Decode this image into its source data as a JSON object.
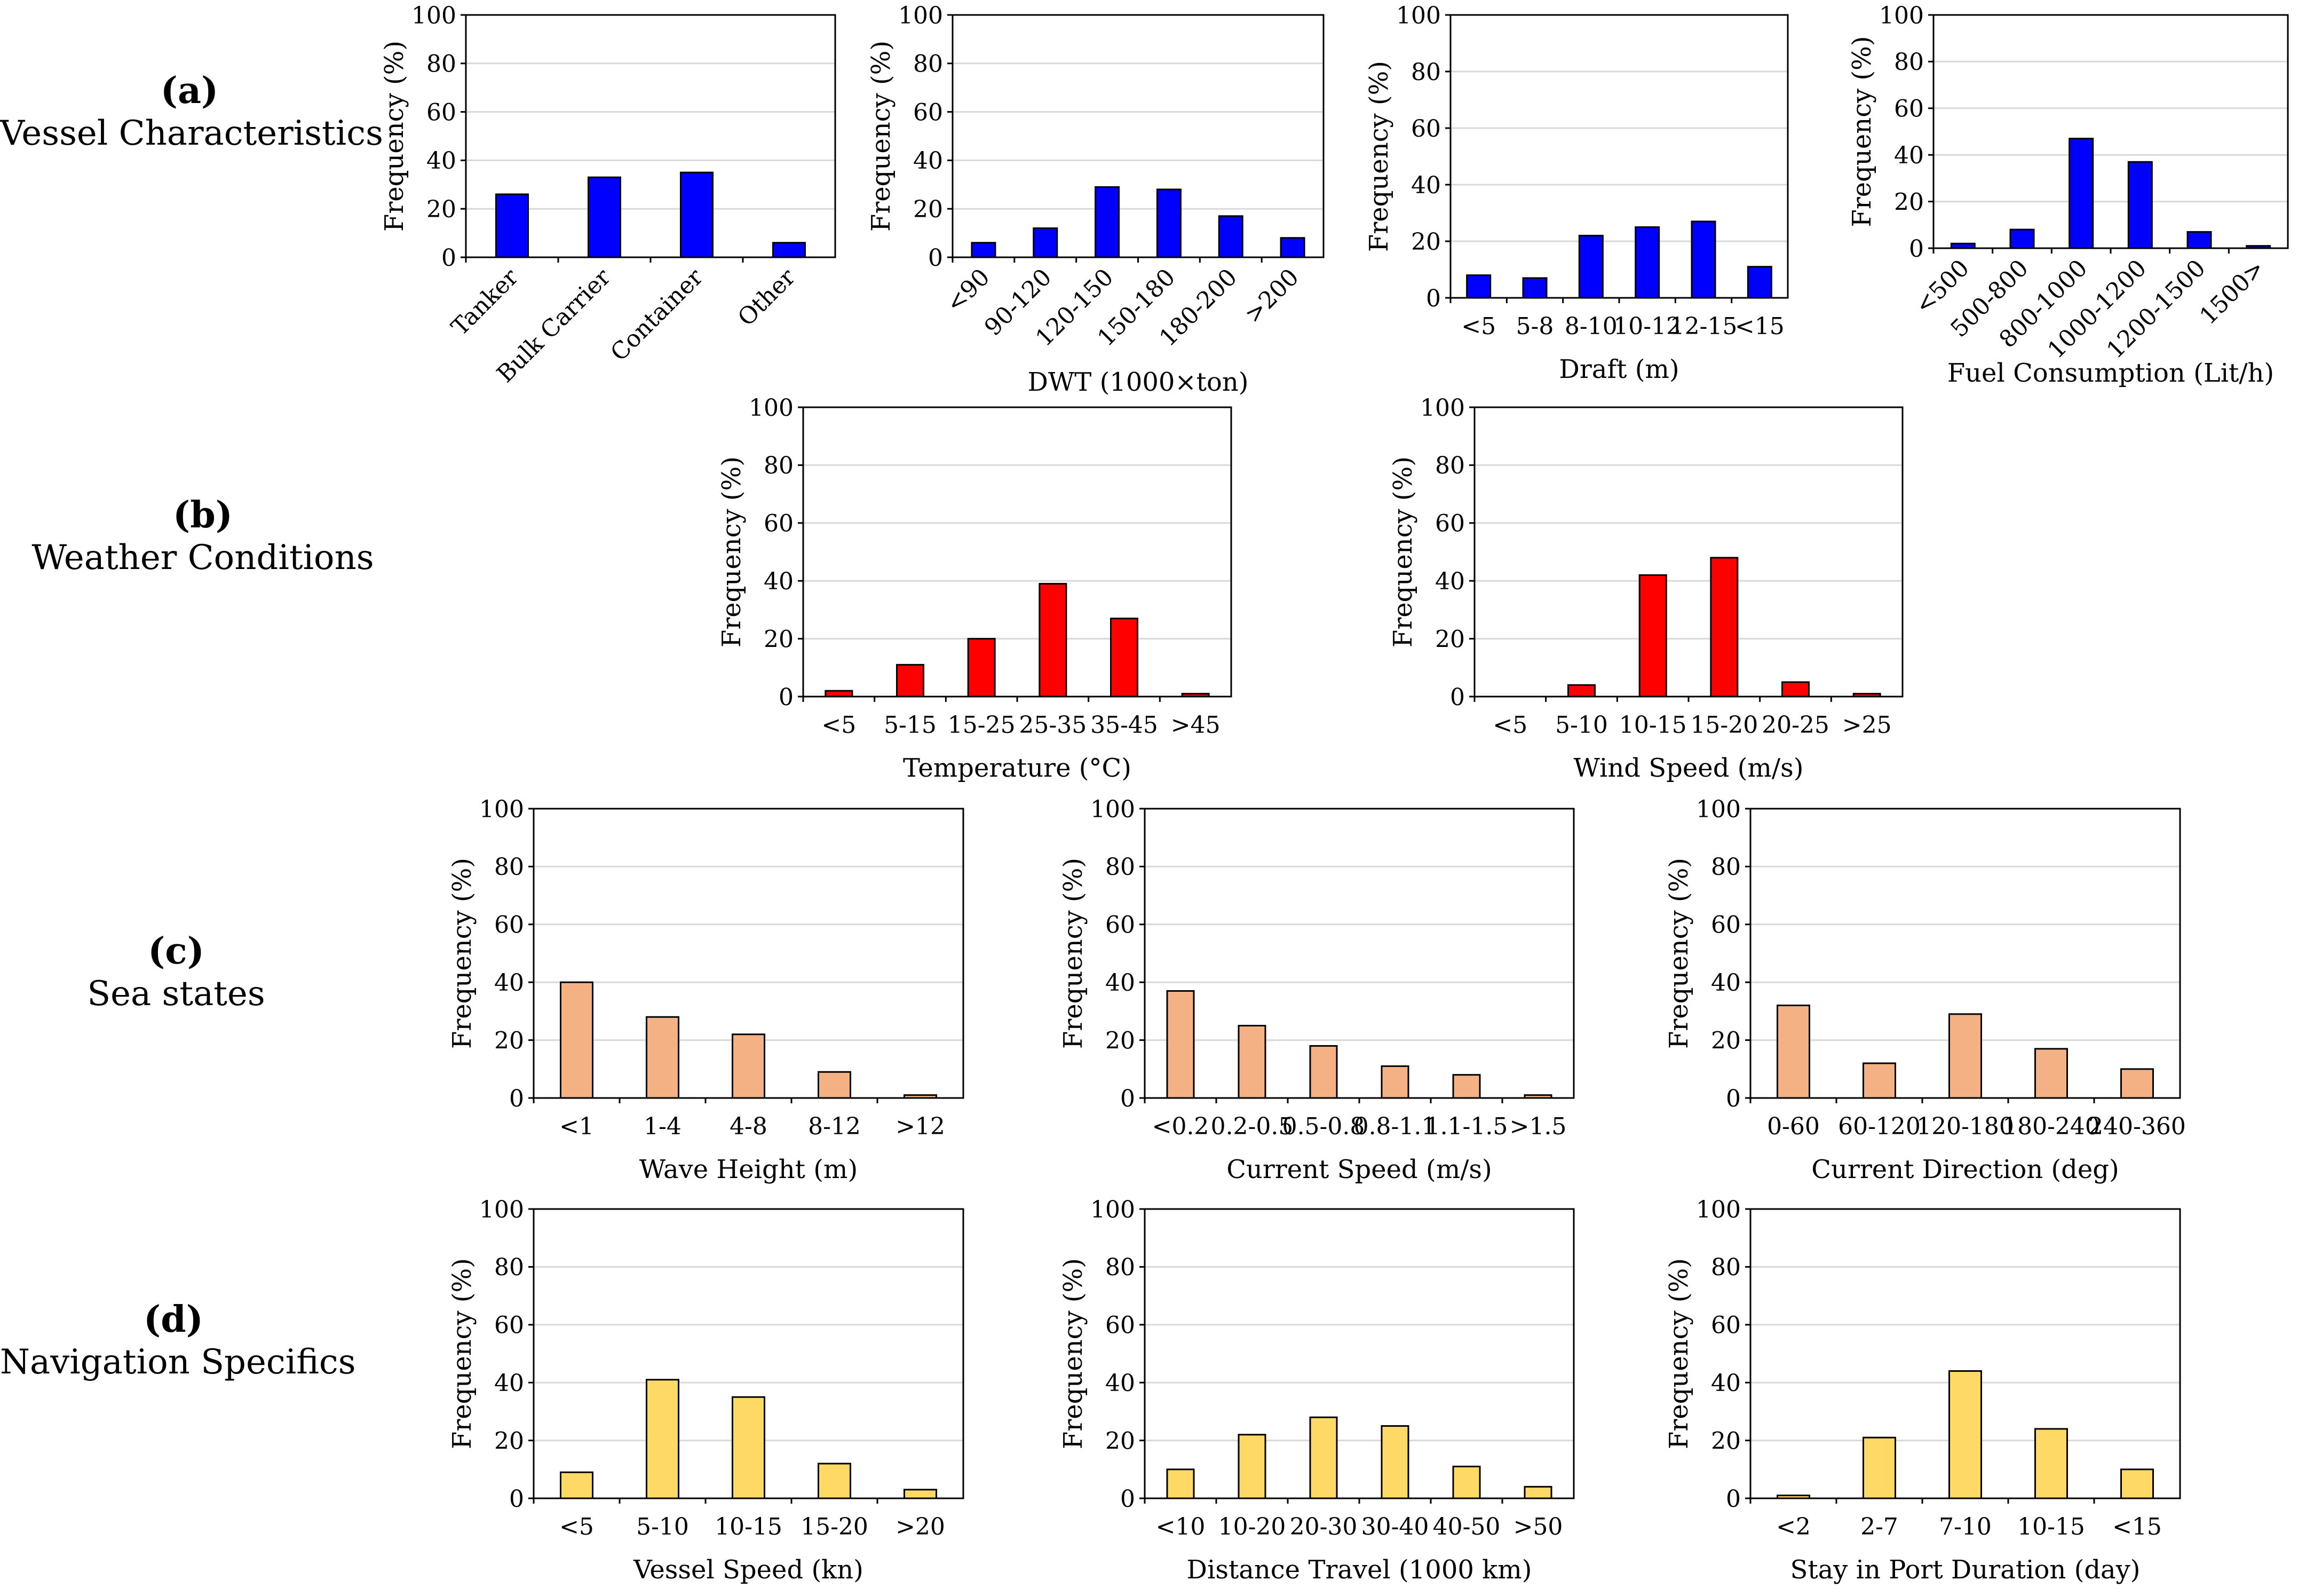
{
  "row_labels": [
    {
      "letter": "(a)",
      "name": "Vessel Characteristics"
    },
    {
      "letter": "(b)",
      "name": "Weather Conditions"
    },
    {
      "letter": "(c)",
      "name": "Sea states"
    },
    {
      "letter": "(d)",
      "name": "Navigation Specifics"
    }
  ],
  "colors": {
    "vessel": "#0000ff",
    "weather": "#ff0000",
    "sea": "#f4b183",
    "navigation": "#ffd966",
    "grid": "#d9d9d9",
    "axis": "#000000"
  },
  "chart_data": [
    {
      "id": "vessel-type",
      "type": "bar",
      "group": "vessel",
      "xlabel": "",
      "ylabel": "Frequency (%)",
      "ylim": [
        0,
        100
      ],
      "yticks": [
        0,
        20,
        40,
        60,
        80,
        100
      ],
      "grid": true,
      "rotate_ticks": true,
      "categories": [
        "Tanker",
        "Bulk Carrier",
        "Container",
        "Other"
      ],
      "values": [
        26,
        33,
        35,
        6
      ]
    },
    {
      "id": "dwt",
      "type": "bar",
      "group": "vessel",
      "xlabel": "DWT (1000×ton)",
      "ylabel": "Frequency (%)",
      "ylim": [
        0,
        100
      ],
      "yticks": [
        0,
        20,
        40,
        60,
        80,
        100
      ],
      "grid": true,
      "rotate_ticks": true,
      "categories": [
        "<90",
        "90-120",
        "120-150",
        "150-180",
        "180-200",
        ">200"
      ],
      "values": [
        6,
        12,
        29,
        28,
        17,
        8
      ]
    },
    {
      "id": "draft",
      "type": "bar",
      "group": "vessel",
      "xlabel": "Draft (m)",
      "ylabel": "Frequency (%)",
      "ylim": [
        0,
        100
      ],
      "yticks": [
        0,
        20,
        40,
        60,
        80,
        100
      ],
      "grid": true,
      "rotate_ticks": false,
      "categories": [
        "<5",
        "5-8",
        "8-10",
        "10-12",
        "12-15",
        "<15"
      ],
      "values": [
        8,
        7,
        22,
        25,
        27,
        11
      ]
    },
    {
      "id": "fuel",
      "type": "bar",
      "group": "vessel",
      "xlabel": "Fuel Consumption (Lit/h)",
      "ylabel": "Frequency (%)",
      "ylim": [
        0,
        100
      ],
      "yticks": [
        0,
        20,
        40,
        60,
        80,
        100
      ],
      "grid": true,
      "rotate_ticks": true,
      "categories": [
        "<500",
        "500-800",
        "800-1000",
        "1000-1200",
        "1200-1500",
        "1500>"
      ],
      "values": [
        2,
        8,
        47,
        37,
        7,
        1
      ]
    },
    {
      "id": "temperature",
      "type": "bar",
      "group": "weather",
      "xlabel": "Temperature (°C)",
      "ylabel": "Frequency (%)",
      "ylim": [
        0,
        100
      ],
      "yticks": [
        0,
        20,
        40,
        60,
        80,
        100
      ],
      "grid": true,
      "rotate_ticks": false,
      "categories": [
        "<5",
        "5-15",
        "15-25",
        "25-35",
        "35-45",
        ">45"
      ],
      "values": [
        2,
        11,
        20,
        39,
        27,
        1
      ]
    },
    {
      "id": "wind-speed",
      "type": "bar",
      "group": "weather",
      "xlabel": "Wind Speed (m/s)",
      "ylabel": "Frequency (%)",
      "ylim": [
        0,
        100
      ],
      "yticks": [
        0,
        20,
        40,
        60,
        80,
        100
      ],
      "grid": true,
      "rotate_ticks": false,
      "categories": [
        "<5",
        "5-10",
        "10-15",
        "15-20",
        "20-25",
        ">25"
      ],
      "values": [
        0,
        4,
        42,
        48,
        5,
        1
      ]
    },
    {
      "id": "wave-height",
      "type": "bar",
      "group": "sea",
      "xlabel": "Wave Height (m)",
      "ylabel": "Frequency (%)",
      "ylim": [
        0,
        100
      ],
      "yticks": [
        0,
        20,
        40,
        60,
        80,
        100
      ],
      "grid": true,
      "rotate_ticks": false,
      "categories": [
        "<1",
        "1-4",
        "4-8",
        "8-12",
        ">12"
      ],
      "values": [
        40,
        28,
        22,
        9,
        1
      ]
    },
    {
      "id": "current-speed",
      "type": "bar",
      "group": "sea",
      "xlabel": "Current Speed (m/s)",
      "ylabel": "Frequency (%)",
      "ylim": [
        0,
        100
      ],
      "yticks": [
        0,
        20,
        40,
        60,
        80,
        100
      ],
      "grid": true,
      "rotate_ticks": false,
      "categories": [
        "<0.2",
        "0.2-0.5",
        "0.5-0.8",
        "0.8-1.1",
        "1.1-1.5",
        ">1.5"
      ],
      "values": [
        37,
        25,
        18,
        11,
        8,
        1
      ]
    },
    {
      "id": "current-direction",
      "type": "bar",
      "group": "sea",
      "xlabel": "Current Direction (deg)",
      "ylabel": "Frequency (%)",
      "ylim": [
        0,
        100
      ],
      "yticks": [
        0,
        20,
        40,
        60,
        80,
        100
      ],
      "grid": true,
      "rotate_ticks": false,
      "categories": [
        "0-60",
        "60-120",
        "120-180",
        "180-240",
        "240-360"
      ],
      "values": [
        32,
        12,
        29,
        17,
        10
      ]
    },
    {
      "id": "vessel-speed",
      "type": "bar",
      "group": "navigation",
      "xlabel": "Vessel Speed (kn)",
      "ylabel": "Frequency (%)",
      "ylim": [
        0,
        100
      ],
      "yticks": [
        0,
        20,
        40,
        60,
        80,
        100
      ],
      "grid": true,
      "rotate_ticks": false,
      "categories": [
        "<5",
        "5-10",
        "10-15",
        "15-20",
        ">20"
      ],
      "values": [
        9,
        41,
        35,
        12,
        3
      ]
    },
    {
      "id": "distance-travel",
      "type": "bar",
      "group": "navigation",
      "xlabel": "Distance Travel (1000 km)",
      "ylabel": "Frequency (%)",
      "ylim": [
        0,
        100
      ],
      "yticks": [
        0,
        20,
        40,
        60,
        80,
        100
      ],
      "grid": true,
      "rotate_ticks": false,
      "categories": [
        "<10",
        "10-20",
        "20-30",
        "30-40",
        "40-50",
        ">50"
      ],
      "values": [
        10,
        22,
        28,
        25,
        11,
        4
      ]
    },
    {
      "id": "stay-in-port",
      "type": "bar",
      "group": "navigation",
      "xlabel": "Stay in Port Duration (day)",
      "ylabel": "Frequency (%)",
      "ylim": [
        0,
        100
      ],
      "yticks": [
        0,
        20,
        40,
        60,
        80,
        100
      ],
      "grid": true,
      "rotate_ticks": false,
      "categories": [
        "<2",
        "2-7",
        "7-10",
        "10-15",
        "<15"
      ],
      "values": [
        1,
        21,
        44,
        24,
        10
      ]
    }
  ]
}
